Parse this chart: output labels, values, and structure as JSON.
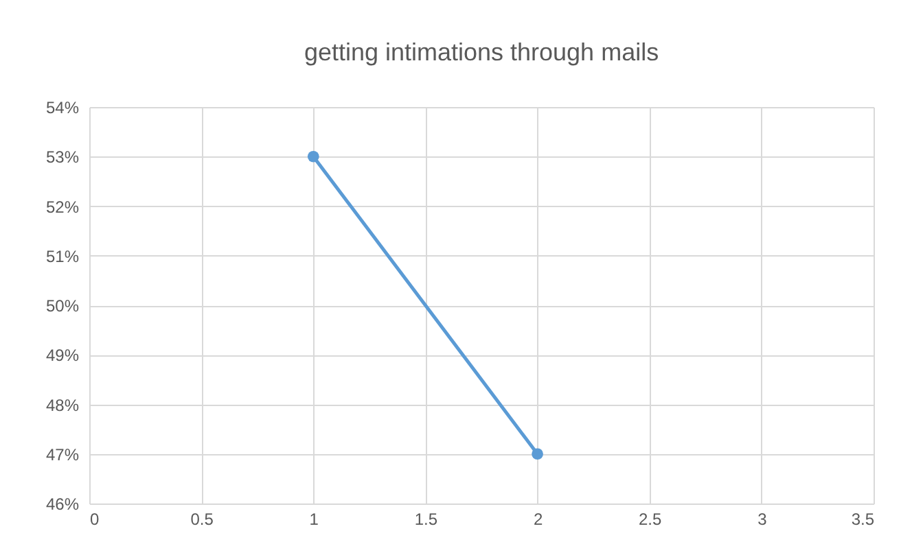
{
  "chart_data": {
    "type": "line",
    "title": "getting intimations through mails",
    "x": [
      1,
      2
    ],
    "series": [
      {
        "color": "#5b9bd5",
        "values": [
          53,
          47
        ]
      }
    ],
    "xlim": [
      0,
      3.5
    ],
    "xticks": [
      0,
      0.5,
      1,
      1.5,
      2,
      2.5,
      3,
      3.5
    ],
    "ylim": [
      46,
      54
    ],
    "yticks": [
      {
        "value": 46,
        "label": "46%"
      },
      {
        "value": 47,
        "label": "47%"
      },
      {
        "value": 48,
        "label": "48%"
      },
      {
        "value": 49,
        "label": "49%"
      },
      {
        "value": 50,
        "label": "50%"
      },
      {
        "value": 51,
        "label": "51%"
      },
      {
        "value": 52,
        "label": "52%"
      },
      {
        "value": 53,
        "label": "53%"
      },
      {
        "value": 54,
        "label": "54%"
      }
    ],
    "grid": true,
    "marker": "circle",
    "line_style": "solid"
  }
}
